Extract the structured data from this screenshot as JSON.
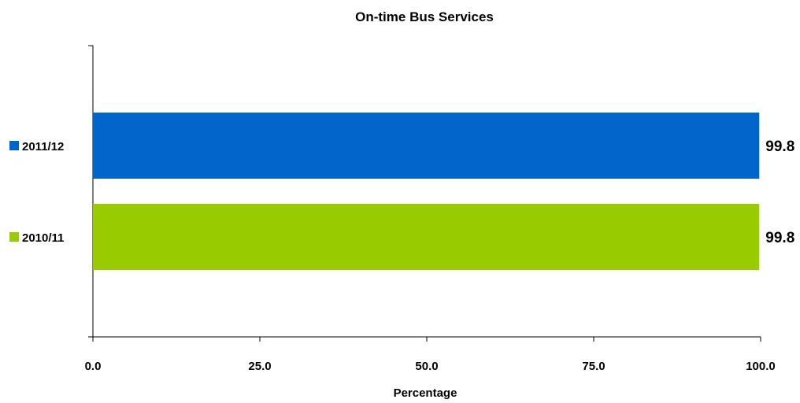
{
  "chart_data": {
    "type": "bar",
    "orientation": "horizontal",
    "title": "On-time Bus Services",
    "xlabel": "Percentage",
    "ylabel": "",
    "xlim": [
      0,
      100
    ],
    "x_ticks": [
      "0.0",
      "25.0",
      "50.0",
      "75.0",
      "100.0"
    ],
    "x_tick_values": [
      0,
      25,
      50,
      75,
      100
    ],
    "grid": false,
    "legend_position": "left",
    "series": [
      {
        "name": "2011/12",
        "values": [
          99.8
        ],
        "label": "99.8",
        "color": "#0066cc"
      },
      {
        "name": "2010/11",
        "values": [
          99.8
        ],
        "label": "99.8",
        "color": "#99cc00"
      }
    ]
  }
}
